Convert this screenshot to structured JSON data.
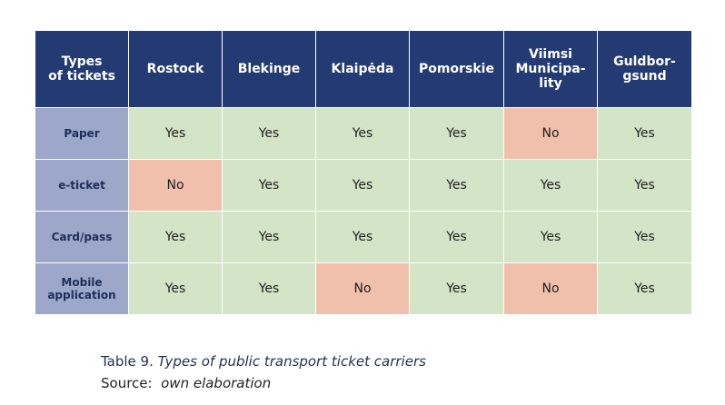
{
  "table": {
    "corner_header": [
      "Types",
      "of tickets"
    ],
    "columns": [
      [
        "Rostock"
      ],
      [
        "Blekinge"
      ],
      [
        "Klaipėda"
      ],
      [
        "Pomorskie"
      ],
      [
        "Viimsi",
        "Municipa-",
        "lity"
      ],
      [
        "Guldbor-",
        "gsund"
      ]
    ],
    "rows": [
      {
        "label": [
          "Paper"
        ],
        "values": [
          "Yes",
          "Yes",
          "Yes",
          "Yes",
          "No",
          "Yes"
        ]
      },
      {
        "label": [
          "e-ticket"
        ],
        "values": [
          "No",
          "Yes",
          "Yes",
          "Yes",
          "Yes",
          "Yes"
        ]
      },
      {
        "label": [
          "Card/pass"
        ],
        "values": [
          "Yes",
          "Yes",
          "Yes",
          "Yes",
          "Yes",
          "Yes"
        ]
      },
      {
        "label": [
          "Mobile",
          "application"
        ],
        "values": [
          "Yes",
          "Yes",
          "No",
          "Yes",
          "No",
          "Yes"
        ]
      }
    ]
  },
  "caption": {
    "table_number": "Table 9.",
    "title": "Types of public transport ticket carriers",
    "source_label": "Source:",
    "source_text": "own elaboration"
  },
  "colors": {
    "header_bg": "#233a73",
    "row_header_bg": "#9da7c9",
    "yes_bg": "#d3e4c7",
    "no_bg": "#f1c0ac"
  }
}
